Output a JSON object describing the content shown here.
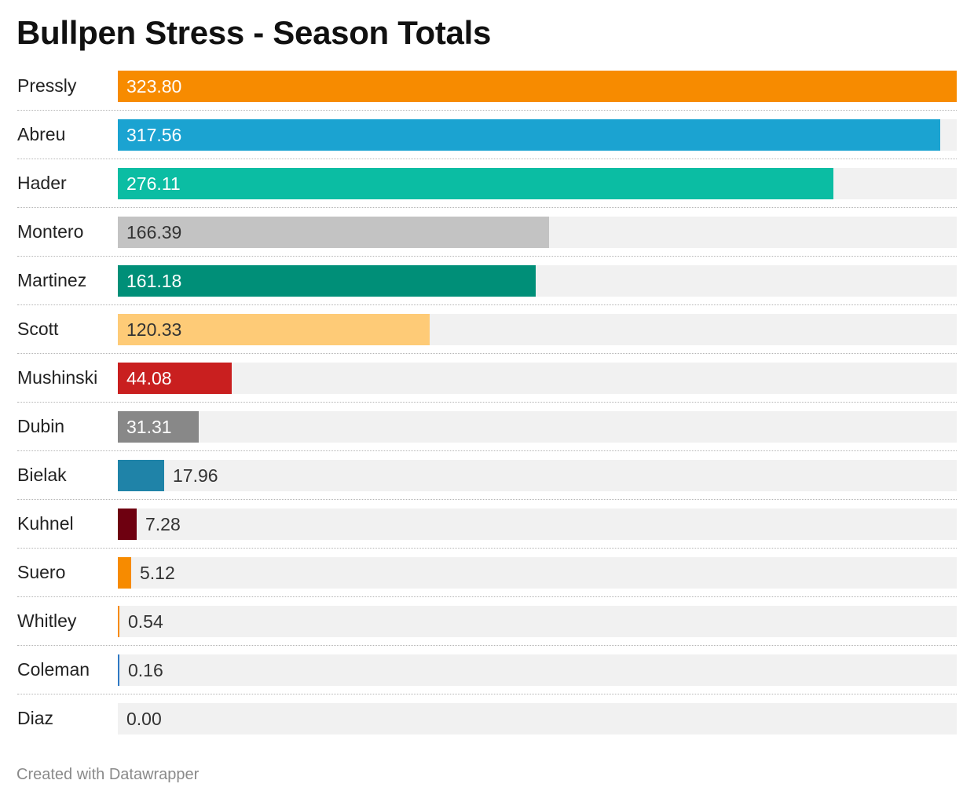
{
  "header": {
    "title": "Bullpen Stress - Season Totals"
  },
  "footer": {
    "credit": "Created with Datawrapper"
  },
  "chart_data": {
    "type": "bar",
    "orientation": "horizontal",
    "title": "Bullpen Stress - Season Totals",
    "xlim": [
      0,
      323.8
    ],
    "grid": false,
    "categories": [
      "Pressly",
      "Abreu",
      "Hader",
      "Montero",
      "Martinez",
      "Scott",
      "Mushinski",
      "Dubin",
      "Bielak",
      "Kuhnel",
      "Suero",
      "Whitley",
      "Coleman",
      "Diaz"
    ],
    "values": [
      323.8,
      317.56,
      276.11,
      166.39,
      161.18,
      120.33,
      44.08,
      31.31,
      17.96,
      7.28,
      5.12,
      0.54,
      0.16,
      0.0
    ],
    "value_labels": [
      "323.80",
      "317.56",
      "276.11",
      "166.39",
      "161.18",
      "120.33",
      "44.08",
      "31.31",
      "17.96",
      "7.28",
      "5.12",
      "0.54",
      "0.16",
      "0.00"
    ],
    "colors": [
      "#f78b00",
      "#1ba3d1",
      "#0bbda3",
      "#c3c3c3",
      "#008f78",
      "#fecb77",
      "#c91f1f",
      "#888888",
      "#1f83a8",
      "#6e0010",
      "#f78b00",
      "#f78b00",
      "#2f79c4",
      "#cccccc"
    ],
    "label_colors": [
      "#ffffff",
      "#ffffff",
      "#ffffff",
      "#333333",
      "#ffffff",
      "#333333",
      "#ffffff",
      "#ffffff",
      "#333333",
      "#333333",
      "#333333",
      "#333333",
      "#333333",
      "#333333"
    ]
  }
}
